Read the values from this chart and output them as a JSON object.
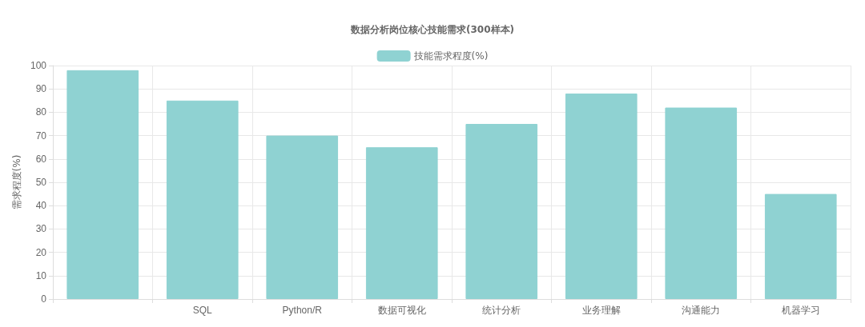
{
  "chart_data": {
    "type": "bar",
    "title": "数据分析岗位核心技能需求(300样本)",
    "ylabel": "需求程度(%)",
    "categories": [
      null,
      "SQL",
      "Python/R",
      "数据可视化",
      "统计分析",
      "业务理解",
      "沟通能力",
      "机器学习"
    ],
    "series": [
      {
        "name": "技能需求程度(%)",
        "color": "#8fd2d2",
        "values": [
          98,
          85,
          70,
          65,
          75,
          88,
          82,
          45
        ]
      }
    ],
    "ylim": [
      0,
      100
    ],
    "yticks": [
      0,
      10,
      20,
      30,
      40,
      50,
      60,
      70,
      80,
      90,
      100
    ],
    "grid": true,
    "legend": "top"
  }
}
